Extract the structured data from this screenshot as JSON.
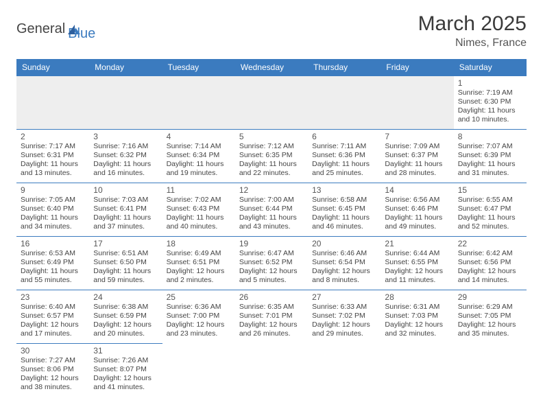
{
  "logo": {
    "text1": "General",
    "text2": "Blue"
  },
  "title": "March 2025",
  "location": "Nimes, France",
  "colors": {
    "header_bg": "#3b7bbf",
    "header_text": "#ffffff",
    "cell_border": "#3b7bbf",
    "blank_bg": "#eeeeee",
    "text": "#444444"
  },
  "weekdays": [
    "Sunday",
    "Monday",
    "Tuesday",
    "Wednesday",
    "Thursday",
    "Friday",
    "Saturday"
  ],
  "weeks": [
    [
      null,
      null,
      null,
      null,
      null,
      null,
      {
        "day": "1",
        "sunrise": "Sunrise: 7:19 AM",
        "sunset": "Sunset: 6:30 PM",
        "daylight1": "Daylight: 11 hours",
        "daylight2": "and 10 minutes."
      }
    ],
    [
      {
        "day": "2",
        "sunrise": "Sunrise: 7:17 AM",
        "sunset": "Sunset: 6:31 PM",
        "daylight1": "Daylight: 11 hours",
        "daylight2": "and 13 minutes."
      },
      {
        "day": "3",
        "sunrise": "Sunrise: 7:16 AM",
        "sunset": "Sunset: 6:32 PM",
        "daylight1": "Daylight: 11 hours",
        "daylight2": "and 16 minutes."
      },
      {
        "day": "4",
        "sunrise": "Sunrise: 7:14 AM",
        "sunset": "Sunset: 6:34 PM",
        "daylight1": "Daylight: 11 hours",
        "daylight2": "and 19 minutes."
      },
      {
        "day": "5",
        "sunrise": "Sunrise: 7:12 AM",
        "sunset": "Sunset: 6:35 PM",
        "daylight1": "Daylight: 11 hours",
        "daylight2": "and 22 minutes."
      },
      {
        "day": "6",
        "sunrise": "Sunrise: 7:11 AM",
        "sunset": "Sunset: 6:36 PM",
        "daylight1": "Daylight: 11 hours",
        "daylight2": "and 25 minutes."
      },
      {
        "day": "7",
        "sunrise": "Sunrise: 7:09 AM",
        "sunset": "Sunset: 6:37 PM",
        "daylight1": "Daylight: 11 hours",
        "daylight2": "and 28 minutes."
      },
      {
        "day": "8",
        "sunrise": "Sunrise: 7:07 AM",
        "sunset": "Sunset: 6:39 PM",
        "daylight1": "Daylight: 11 hours",
        "daylight2": "and 31 minutes."
      }
    ],
    [
      {
        "day": "9",
        "sunrise": "Sunrise: 7:05 AM",
        "sunset": "Sunset: 6:40 PM",
        "daylight1": "Daylight: 11 hours",
        "daylight2": "and 34 minutes."
      },
      {
        "day": "10",
        "sunrise": "Sunrise: 7:03 AM",
        "sunset": "Sunset: 6:41 PM",
        "daylight1": "Daylight: 11 hours",
        "daylight2": "and 37 minutes."
      },
      {
        "day": "11",
        "sunrise": "Sunrise: 7:02 AM",
        "sunset": "Sunset: 6:43 PM",
        "daylight1": "Daylight: 11 hours",
        "daylight2": "and 40 minutes."
      },
      {
        "day": "12",
        "sunrise": "Sunrise: 7:00 AM",
        "sunset": "Sunset: 6:44 PM",
        "daylight1": "Daylight: 11 hours",
        "daylight2": "and 43 minutes."
      },
      {
        "day": "13",
        "sunrise": "Sunrise: 6:58 AM",
        "sunset": "Sunset: 6:45 PM",
        "daylight1": "Daylight: 11 hours",
        "daylight2": "and 46 minutes."
      },
      {
        "day": "14",
        "sunrise": "Sunrise: 6:56 AM",
        "sunset": "Sunset: 6:46 PM",
        "daylight1": "Daylight: 11 hours",
        "daylight2": "and 49 minutes."
      },
      {
        "day": "15",
        "sunrise": "Sunrise: 6:55 AM",
        "sunset": "Sunset: 6:47 PM",
        "daylight1": "Daylight: 11 hours",
        "daylight2": "and 52 minutes."
      }
    ],
    [
      {
        "day": "16",
        "sunrise": "Sunrise: 6:53 AM",
        "sunset": "Sunset: 6:49 PM",
        "daylight1": "Daylight: 11 hours",
        "daylight2": "and 55 minutes."
      },
      {
        "day": "17",
        "sunrise": "Sunrise: 6:51 AM",
        "sunset": "Sunset: 6:50 PM",
        "daylight1": "Daylight: 11 hours",
        "daylight2": "and 59 minutes."
      },
      {
        "day": "18",
        "sunrise": "Sunrise: 6:49 AM",
        "sunset": "Sunset: 6:51 PM",
        "daylight1": "Daylight: 12 hours",
        "daylight2": "and 2 minutes."
      },
      {
        "day": "19",
        "sunrise": "Sunrise: 6:47 AM",
        "sunset": "Sunset: 6:52 PM",
        "daylight1": "Daylight: 12 hours",
        "daylight2": "and 5 minutes."
      },
      {
        "day": "20",
        "sunrise": "Sunrise: 6:46 AM",
        "sunset": "Sunset: 6:54 PM",
        "daylight1": "Daylight: 12 hours",
        "daylight2": "and 8 minutes."
      },
      {
        "day": "21",
        "sunrise": "Sunrise: 6:44 AM",
        "sunset": "Sunset: 6:55 PM",
        "daylight1": "Daylight: 12 hours",
        "daylight2": "and 11 minutes."
      },
      {
        "day": "22",
        "sunrise": "Sunrise: 6:42 AM",
        "sunset": "Sunset: 6:56 PM",
        "daylight1": "Daylight: 12 hours",
        "daylight2": "and 14 minutes."
      }
    ],
    [
      {
        "day": "23",
        "sunrise": "Sunrise: 6:40 AM",
        "sunset": "Sunset: 6:57 PM",
        "daylight1": "Daylight: 12 hours",
        "daylight2": "and 17 minutes."
      },
      {
        "day": "24",
        "sunrise": "Sunrise: 6:38 AM",
        "sunset": "Sunset: 6:59 PM",
        "daylight1": "Daylight: 12 hours",
        "daylight2": "and 20 minutes."
      },
      {
        "day": "25",
        "sunrise": "Sunrise: 6:36 AM",
        "sunset": "Sunset: 7:00 PM",
        "daylight1": "Daylight: 12 hours",
        "daylight2": "and 23 minutes."
      },
      {
        "day": "26",
        "sunrise": "Sunrise: 6:35 AM",
        "sunset": "Sunset: 7:01 PM",
        "daylight1": "Daylight: 12 hours",
        "daylight2": "and 26 minutes."
      },
      {
        "day": "27",
        "sunrise": "Sunrise: 6:33 AM",
        "sunset": "Sunset: 7:02 PM",
        "daylight1": "Daylight: 12 hours",
        "daylight2": "and 29 minutes."
      },
      {
        "day": "28",
        "sunrise": "Sunrise: 6:31 AM",
        "sunset": "Sunset: 7:03 PM",
        "daylight1": "Daylight: 12 hours",
        "daylight2": "and 32 minutes."
      },
      {
        "day": "29",
        "sunrise": "Sunrise: 6:29 AM",
        "sunset": "Sunset: 7:05 PM",
        "daylight1": "Daylight: 12 hours",
        "daylight2": "and 35 minutes."
      }
    ],
    [
      {
        "day": "30",
        "sunrise": "Sunrise: 7:27 AM",
        "sunset": "Sunset: 8:06 PM",
        "daylight1": "Daylight: 12 hours",
        "daylight2": "and 38 minutes."
      },
      {
        "day": "31",
        "sunrise": "Sunrise: 7:26 AM",
        "sunset": "Sunset: 8:07 PM",
        "daylight1": "Daylight: 12 hours",
        "daylight2": "and 41 minutes."
      },
      null,
      null,
      null,
      null,
      null
    ]
  ]
}
